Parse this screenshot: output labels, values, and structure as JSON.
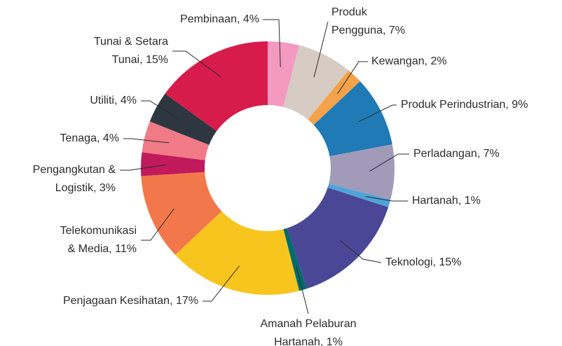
{
  "chart_data": {
    "type": "donut",
    "categories": [
      "Pembinaan",
      "Produk Pengguna",
      "Kewangan",
      "Produk Perindustrian",
      "Perladangan",
      "Hartanah",
      "Teknologi",
      "Amanah Pelaburan Hartanah",
      "Penjagaan Kesihatan",
      "Telekomunikasi & Media",
      "Pengangkutan & Logistik",
      "Tenaga",
      "Utiliti",
      "Tunai & Setara Tunai"
    ],
    "values": [
      4,
      7,
      2,
      9,
      7,
      1,
      15,
      1,
      17,
      11,
      3,
      4,
      4,
      15
    ],
    "value_labels": [
      [
        "Pembinaan, 4%"
      ],
      [
        "Produk",
        "Pengguna, 7%"
      ],
      [
        "Kewangan, 2%"
      ],
      [
        "Produk Perindustrian, 9%"
      ],
      [
        "Perladangan, 7%"
      ],
      [
        "Hartanah, 1%"
      ],
      [
        "Teknologi, 15%"
      ],
      [
        "Amanah Pelaburan",
        "Hartanah, 1%"
      ],
      [
        "Penjagaan Kesihatan, 17%"
      ],
      [
        "Telekomunikasi",
        "& Media, 11%"
      ],
      [
        "Pengangkutan &",
        "Logistik, 3%"
      ],
      [
        "Tenaga, 4%"
      ],
      [
        "Utiliti, 4%"
      ],
      [
        "Tunai & Setara",
        "Tunai, 15%"
      ]
    ],
    "colors": [
      "#f49ac1",
      "#d6ccc4",
      "#f5a24a",
      "#1f7ab5",
      "#a19bb9",
      "#4fa3d8",
      "#4a4797",
      "#006b6b",
      "#f8c51f",
      "#f2774b",
      "#c0195c",
      "#f07a85",
      "#2e3640",
      "#d71c4b"
    ]
  }
}
